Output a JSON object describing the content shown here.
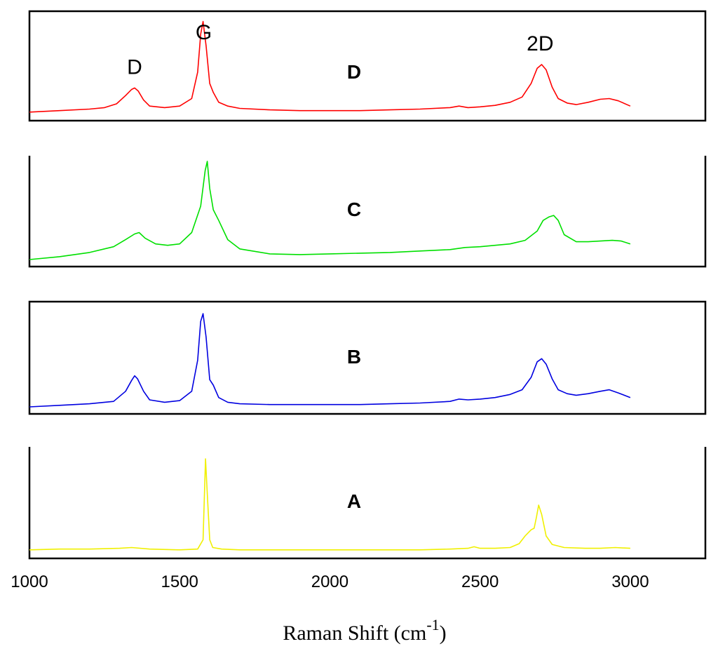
{
  "chart_data": {
    "type": "line",
    "title": "",
    "xlabel": "Raman Shift (cm",
    "xlabel_superscript": "-1",
    "xlabel_close": ")",
    "ylabel": "",
    "xlim": [
      1000,
      3250
    ],
    "xticks": [
      {
        "value": 1000,
        "label": "1000"
      },
      {
        "value": 1500,
        "label": "1500"
      },
      {
        "value": 2000,
        "label": "2000"
      },
      {
        "value": 2500,
        "label": "2500"
      },
      {
        "value": 3000,
        "label": "3000"
      }
    ],
    "peak_labels": [
      {
        "text": "D",
        "x": 1350,
        "panel": "D"
      },
      {
        "text": "G",
        "x": 1580,
        "panel": "D"
      },
      {
        "text": "2D",
        "x": 2700,
        "panel": "D"
      }
    ],
    "series": [
      {
        "name": "D",
        "color": "#ff0000",
        "ylim": [
          0,
          1.3
        ],
        "x": [
          1000,
          1100,
          1200,
          1250,
          1290,
          1320,
          1340,
          1350,
          1362,
          1380,
          1400,
          1450,
          1500,
          1540,
          1560,
          1570,
          1578,
          1588,
          1600,
          1612,
          1630,
          1660,
          1700,
          1800,
          1900,
          2000,
          2100,
          2200,
          2300,
          2400,
          2430,
          2460,
          2500,
          2550,
          2600,
          2640,
          2670,
          2690,
          2705,
          2720,
          2740,
          2760,
          2790,
          2820,
          2860,
          2900,
          2930,
          2960,
          3000
        ],
        "y": [
          0.02,
          0.04,
          0.06,
          0.08,
          0.13,
          0.24,
          0.32,
          0.34,
          0.3,
          0.18,
          0.1,
          0.08,
          0.1,
          0.2,
          0.55,
          1.05,
          1.22,
          0.9,
          0.4,
          0.28,
          0.15,
          0.1,
          0.07,
          0.05,
          0.04,
          0.04,
          0.04,
          0.05,
          0.06,
          0.08,
          0.1,
          0.08,
          0.09,
          0.11,
          0.15,
          0.22,
          0.4,
          0.6,
          0.65,
          0.58,
          0.35,
          0.2,
          0.14,
          0.12,
          0.15,
          0.19,
          0.2,
          0.17,
          0.1
        ]
      },
      {
        "name": "C",
        "color": "#00e000",
        "ylim": [
          0,
          1.4
        ],
        "x": [
          1000,
          1100,
          1200,
          1280,
          1320,
          1350,
          1365,
          1385,
          1420,
          1460,
          1500,
          1540,
          1570,
          1585,
          1592,
          1600,
          1612,
          1630,
          1660,
          1700,
          1800,
          1900,
          2000,
          2100,
          2200,
          2300,
          2400,
          2450,
          2500,
          2600,
          2650,
          2690,
          2710,
          2730,
          2745,
          2760,
          2780,
          2820,
          2860,
          2900,
          2940,
          2970,
          3000
        ],
        "y": [
          0.0,
          0.04,
          0.1,
          0.18,
          0.28,
          0.36,
          0.38,
          0.3,
          0.22,
          0.2,
          0.22,
          0.38,
          0.75,
          1.25,
          1.38,
          1.0,
          0.7,
          0.55,
          0.28,
          0.15,
          0.08,
          0.07,
          0.08,
          0.09,
          0.1,
          0.12,
          0.14,
          0.17,
          0.18,
          0.22,
          0.27,
          0.4,
          0.55,
          0.6,
          0.62,
          0.55,
          0.35,
          0.25,
          0.25,
          0.26,
          0.27,
          0.26,
          0.22
        ]
      },
      {
        "name": "B",
        "color": "#0000e0",
        "ylim": [
          0,
          1.3
        ],
        "x": [
          1000,
          1100,
          1200,
          1280,
          1320,
          1340,
          1350,
          1360,
          1380,
          1400,
          1450,
          1500,
          1540,
          1560,
          1570,
          1578,
          1588,
          1600,
          1612,
          1630,
          1660,
          1700,
          1800,
          1900,
          2000,
          2100,
          2200,
          2300,
          2400,
          2430,
          2460,
          2500,
          2550,
          2600,
          2640,
          2670,
          2690,
          2705,
          2720,
          2740,
          2760,
          2790,
          2820,
          2860,
          2900,
          2930,
          2960,
          3000
        ],
        "y": [
          0.0,
          0.02,
          0.04,
          0.07,
          0.2,
          0.34,
          0.4,
          0.36,
          0.2,
          0.09,
          0.06,
          0.08,
          0.2,
          0.6,
          1.1,
          1.2,
          0.9,
          0.35,
          0.28,
          0.12,
          0.06,
          0.04,
          0.03,
          0.03,
          0.03,
          0.03,
          0.04,
          0.05,
          0.07,
          0.1,
          0.09,
          0.1,
          0.12,
          0.16,
          0.22,
          0.38,
          0.58,
          0.62,
          0.55,
          0.36,
          0.22,
          0.17,
          0.15,
          0.17,
          0.2,
          0.22,
          0.18,
          0.12
        ]
      },
      {
        "name": "A",
        "color": "#f0f000",
        "ylim": [
          0,
          1.3
        ],
        "x": [
          1000,
          1100,
          1200,
          1300,
          1340,
          1400,
          1500,
          1560,
          1578,
          1586,
          1592,
          1600,
          1610,
          1640,
          1700,
          1800,
          1900,
          2000,
          2100,
          2200,
          2300,
          2400,
          2460,
          2480,
          2500,
          2550,
          2600,
          2630,
          2650,
          2670,
          2680,
          2688,
          2695,
          2705,
          2720,
          2740,
          2780,
          2850,
          2900,
          2950,
          3000
        ],
        "y": [
          0.02,
          0.03,
          0.03,
          0.04,
          0.05,
          0.03,
          0.02,
          0.03,
          0.15,
          1.2,
          0.75,
          0.15,
          0.05,
          0.03,
          0.02,
          0.02,
          0.02,
          0.02,
          0.02,
          0.02,
          0.02,
          0.03,
          0.04,
          0.06,
          0.04,
          0.04,
          0.05,
          0.1,
          0.2,
          0.28,
          0.3,
          0.45,
          0.6,
          0.48,
          0.2,
          0.09,
          0.05,
          0.04,
          0.04,
          0.05,
          0.04
        ]
      }
    ]
  }
}
